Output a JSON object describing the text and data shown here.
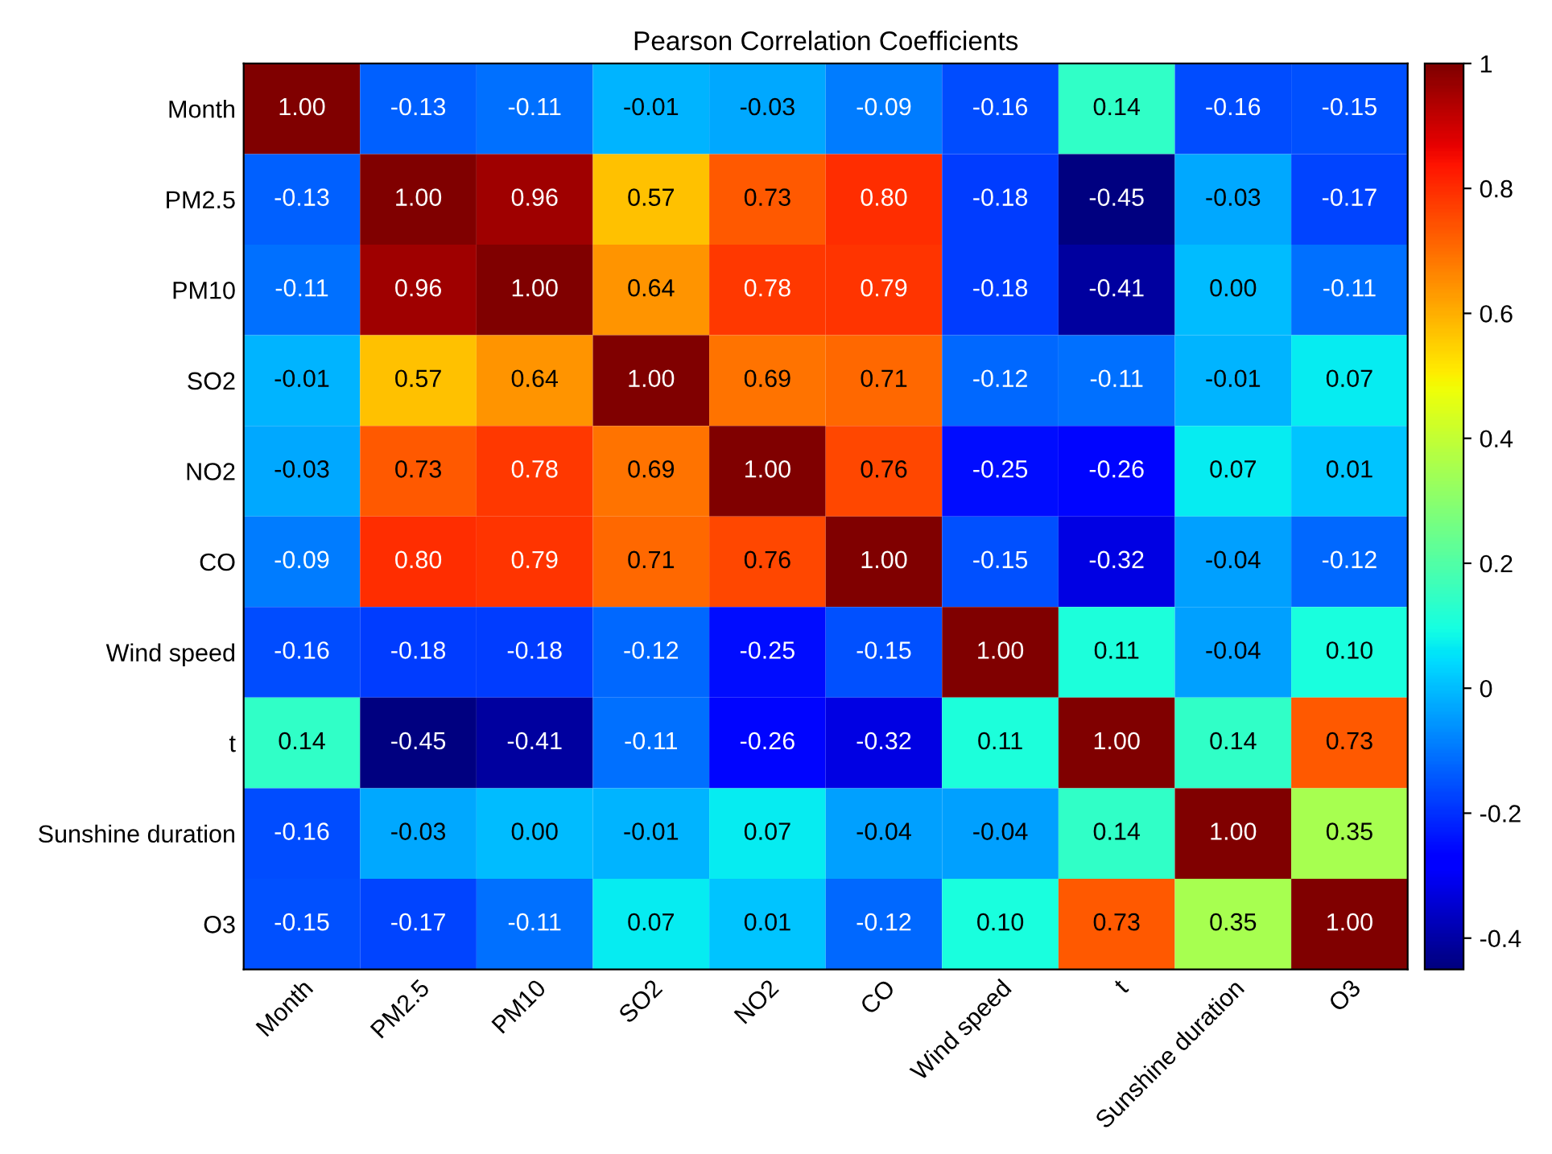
{
  "chart_data": {
    "type": "heatmap",
    "title": "Pearson Correlation Coefficients",
    "categories": [
      "Month",
      "PM2.5",
      "PM10",
      "SO2",
      "NO2",
      "CO",
      "Wind speed",
      "t",
      "Sunshine duration",
      "O3"
    ],
    "y_categories": [
      "Month",
      "PM2.5",
      "PM10",
      "SO2",
      "NO2",
      "CO",
      "Wind speed",
      "t",
      "Sunshine duration",
      "O3"
    ],
    "cells": [
      [
        1.0,
        -0.13,
        -0.11,
        -0.01,
        -0.03,
        -0.09,
        -0.16,
        0.14,
        -0.16,
        -0.15
      ],
      [
        -0.13,
        1.0,
        0.96,
        0.57,
        0.73,
        0.8,
        -0.18,
        -0.45,
        -0.03,
        -0.17
      ],
      [
        -0.11,
        0.96,
        1.0,
        0.64,
        0.78,
        0.79,
        -0.18,
        -0.41,
        0.0,
        -0.11
      ],
      [
        -0.01,
        0.57,
        0.64,
        1.0,
        0.69,
        0.71,
        -0.12,
        -0.11,
        -0.01,
        0.07
      ],
      [
        -0.03,
        0.73,
        0.78,
        0.69,
        1.0,
        0.76,
        -0.25,
        -0.26,
        0.07,
        0.01
      ],
      [
        -0.09,
        0.8,
        0.79,
        0.71,
        0.76,
        1.0,
        -0.15,
        -0.32,
        -0.04,
        -0.12
      ],
      [
        -0.16,
        -0.18,
        -0.18,
        -0.12,
        -0.25,
        -0.15,
        1.0,
        0.11,
        -0.04,
        0.1
      ],
      [
        0.14,
        -0.45,
        -0.41,
        -0.11,
        -0.26,
        -0.32,
        0.11,
        1.0,
        0.14,
        0.73
      ],
      [
        -0.16,
        -0.03,
        0.0,
        -0.01,
        0.07,
        -0.04,
        -0.04,
        0.14,
        1.0,
        0.35
      ],
      [
        -0.15,
        -0.17,
        -0.11,
        0.07,
        0.01,
        -0.12,
        0.1,
        0.73,
        0.35,
        1.0
      ]
    ],
    "cell_labels": [
      [
        "1.00",
        "-0.13",
        "-0.11",
        "-0.01",
        "-0.03",
        "-0.09",
        "-0.16",
        "0.14",
        "-0.16",
        "-0.15"
      ],
      [
        "-0.13",
        "1.00",
        "0.96",
        "0.57",
        "0.73",
        "0.80",
        "-0.18",
        "-0.45",
        "-0.03",
        "-0.17"
      ],
      [
        "-0.11",
        "0.96",
        "1.00",
        "0.64",
        "0.78",
        "0.79",
        "-0.18",
        "-0.41",
        "0.00",
        "-0.11"
      ],
      [
        "-0.01",
        "0.57",
        "0.64",
        "1.00",
        "0.69",
        "0.71",
        "-0.12",
        "-0.11",
        "-0.01",
        "0.07"
      ],
      [
        "-0.03",
        "0.73",
        "0.78",
        "0.69",
        "1.00",
        "0.76",
        "-0.25",
        "-0.26",
        "0.07",
        "0.01"
      ],
      [
        "-0.09",
        "0.80",
        "0.79",
        "0.71",
        "0.76",
        "1.00",
        "-0.15",
        "-0.32",
        "-0.04",
        "-0.12"
      ],
      [
        "-0.16",
        "-0.18",
        "-0.18",
        "-0.12",
        "-0.25",
        "-0.15",
        "1.00",
        "0.11",
        "-0.04",
        "0.10"
      ],
      [
        "0.14",
        "-0.45",
        "-0.41",
        "-0.11",
        "-0.26",
        "-0.32",
        "0.11",
        "1.00",
        "0.14",
        "0.73"
      ],
      [
        "-0.16",
        "-0.03",
        "0.00",
        "-0.01",
        "0.07",
        "-0.04",
        "-0.04",
        "0.14",
        "1.00",
        "0.35"
      ],
      [
        "-0.15",
        "-0.17",
        "-0.11",
        "0.07",
        "0.01",
        "-0.12",
        "0.10",
        "0.73",
        "0.35",
        "1.00"
      ]
    ],
    "clim": [
      -0.45,
      1
    ],
    "cticks": [
      -0.4,
      -0.2,
      0,
      0.2,
      0.4,
      0.6,
      0.8,
      1
    ]
  }
}
